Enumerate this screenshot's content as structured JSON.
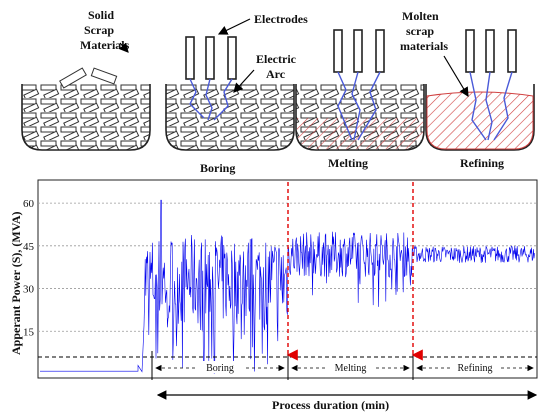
{
  "diagram": {
    "labels": {
      "solid": [
        "Solid",
        "Scrap",
        "Materials"
      ],
      "electrodes": "Electrodes",
      "arc": [
        "Electric",
        "Arc"
      ],
      "molten": [
        "Molten",
        "scrap",
        "materials"
      ]
    },
    "stages": [
      "Boring",
      "Melting",
      "Refining"
    ]
  },
  "chart_data": {
    "type": "line",
    "title": "",
    "xlabel": "Process duration (min)",
    "ylabel": "Apperant Power (S), (MVA)",
    "yticks": [
      "60",
      "45",
      "30",
      "15"
    ],
    "ylim": [
      0,
      66
    ],
    "grid": true,
    "phases": [
      "Boring",
      "Melting",
      "Refining"
    ],
    "series": [
      {
        "color": "#0000ee",
        "segments": [
          {
            "phase": "idle",
            "level": 1
          },
          {
            "phase": "Boring",
            "mean": 33,
            "spread": 16,
            "peak": 61
          },
          {
            "phase": "Melting",
            "mean": 42,
            "spread": 8
          },
          {
            "phase": "Refining",
            "mean": 42,
            "spread": 3
          }
        ]
      }
    ],
    "phase_markers_color": "#e00000"
  }
}
